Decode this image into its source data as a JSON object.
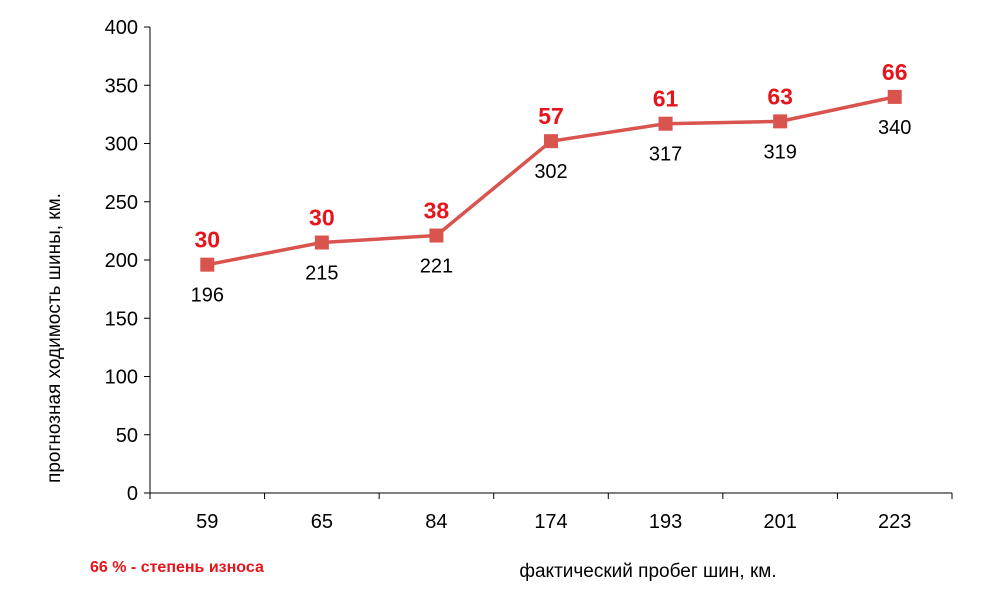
{
  "chart_data": {
    "type": "line",
    "categories": [
      "59",
      "65",
      "84",
      "174",
      "193",
      "201",
      "223"
    ],
    "series": [
      {
        "values": [
          196,
          215,
          221,
          302,
          317,
          319,
          340
        ]
      }
    ],
    "point_annotations": [
      "30",
      "30",
      "38",
      "57",
      "61",
      "63",
      "66"
    ],
    "xlabel": "фактический пробег шин, км.",
    "ylabel": "прогнозная ходимость шины, км.",
    "ylim": [
      0,
      400
    ],
    "yticks": [
      "0",
      "50",
      "100",
      "150",
      "200",
      "250",
      "300",
      "350",
      "400"
    ],
    "grid": false,
    "note": "66 % - степень износа",
    "colors": {
      "line": "#d9534f",
      "marker": "#d9534f",
      "annotation": "#e8141b",
      "note": "#e8141b"
    }
  }
}
